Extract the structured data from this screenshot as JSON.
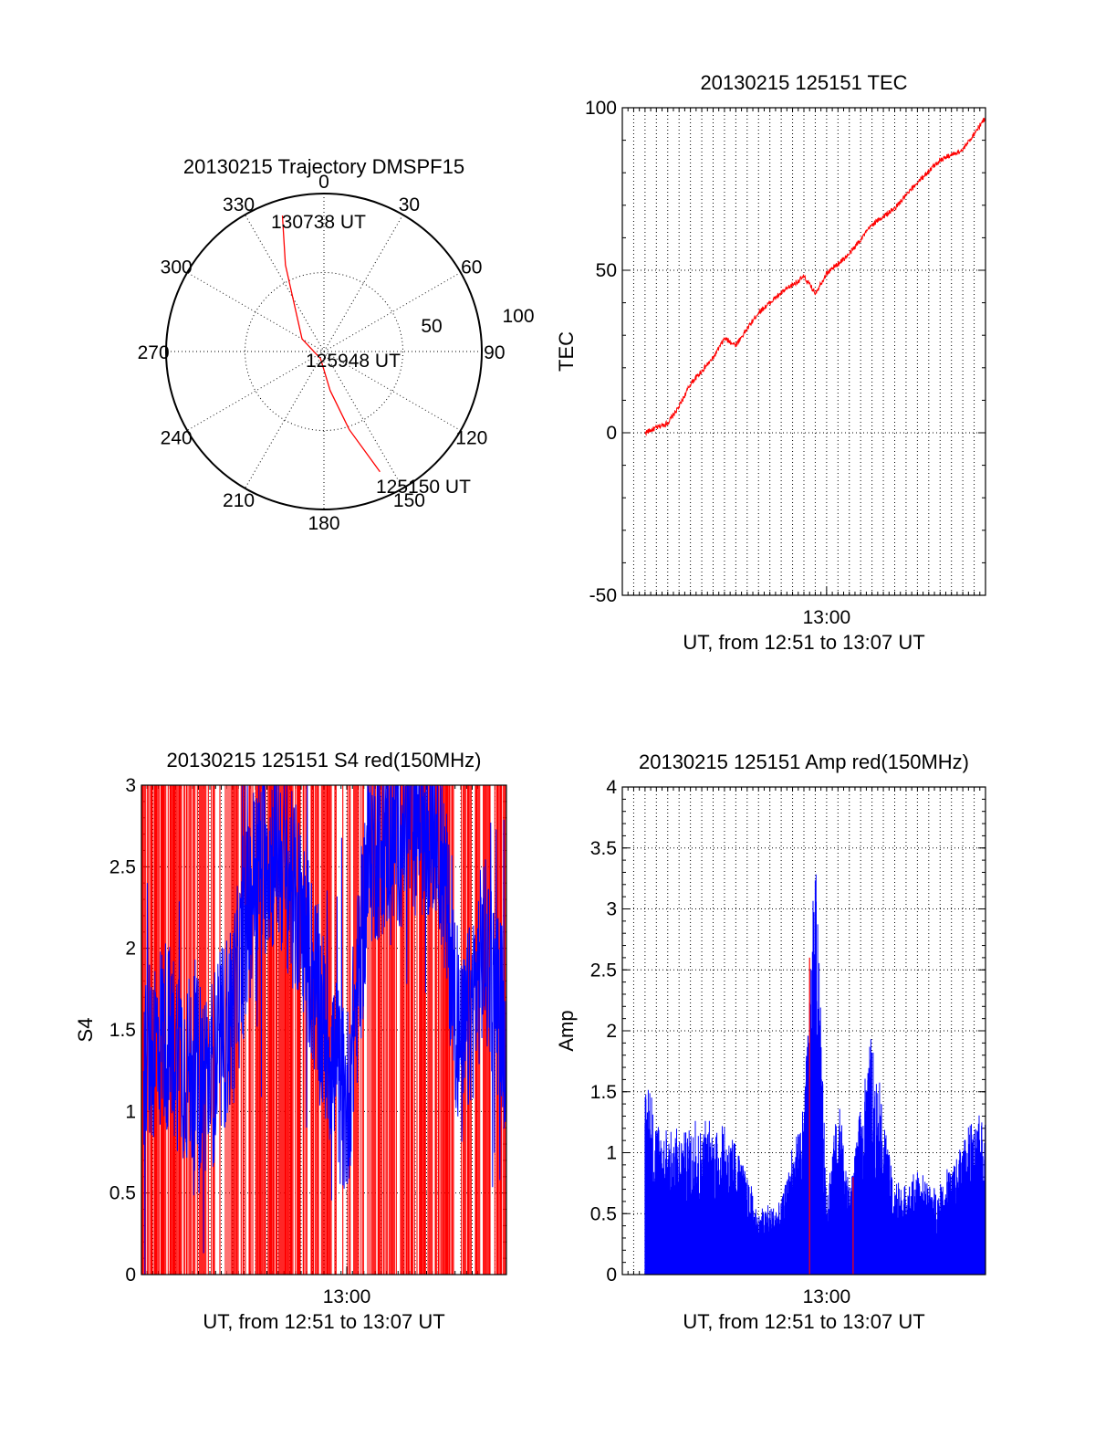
{
  "chart_data": [
    {
      "id": "trajectory",
      "type": "scatter",
      "subtype": "polar",
      "title": "20130215 Trajectory DMSPF15",
      "angle_labels": [
        "0",
        "30",
        "60",
        "90",
        "120",
        "150",
        "180",
        "210",
        "240",
        "270",
        "300",
        "330"
      ],
      "radial_labels": [
        "50",
        "100"
      ],
      "rlim": [
        0,
        100
      ],
      "grid": true,
      "series": [
        {
          "color": "#ff0000",
          "points": [
            {
              "az": 343,
              "r": 90
            },
            {
              "az": 336,
              "r": 60
            },
            {
              "az": 300,
              "r": 16
            },
            {
              "az": 205,
              "r": 5
            },
            {
              "az": 171,
              "r": 25
            },
            {
              "az": 162,
              "r": 52
            },
            {
              "az": 155,
              "r": 84
            }
          ]
        }
      ],
      "annotations": [
        {
          "text": "130738 UT",
          "az": 340,
          "r": 90
        },
        {
          "text": "125948 UT",
          "az": 90,
          "r": 10
        },
        {
          "text": "125150 UT",
          "az": 152,
          "r": 90
        }
      ]
    },
    {
      "id": "tec",
      "type": "line",
      "title": "20130215 125151 TEC",
      "xlabel": "UT, from 12:51 to 13:07 UT",
      "ylabel": "TEC",
      "xlim": [
        "12:51",
        "13:07"
      ],
      "ylim": [
        -50,
        100
      ],
      "yticks": [
        -50,
        0,
        50,
        100
      ],
      "xticks": [
        "13:00"
      ],
      "grid": true,
      "series": [
        {
          "color": "#ff0000",
          "x": [
            "12:52",
            "12:53",
            "12:53:30",
            "12:54",
            "12:55",
            "12:55:30",
            "12:56",
            "12:56:30",
            "12:57",
            "12:58",
            "12:59",
            "12:59:30",
            "13:00",
            "13:00:30",
            "13:01",
            "13:02",
            "13:03",
            "13:04",
            "13:05",
            "13:06",
            "13:07"
          ],
          "y": [
            0,
            3,
            8,
            15,
            23,
            29,
            27,
            32,
            37,
            43,
            48,
            43,
            49,
            52,
            55,
            64,
            69,
            77,
            84,
            87,
            97
          ]
        }
      ]
    },
    {
      "id": "s4",
      "type": "line",
      "title": "20130215 125151 S4 red(150MHz)",
      "xlabel": "UT, from 12:51 to 13:07 UT",
      "ylabel": "S4",
      "xlim": [
        "12:51",
        "13:07"
      ],
      "ylim": [
        0,
        3
      ],
      "yticks": [
        0,
        0.5,
        1,
        1.5,
        2,
        2.5,
        3
      ],
      "xticks": [
        "13:00"
      ],
      "grid": true,
      "series": [
        {
          "color": "#0000ff",
          "x": [
            "12:51",
            "12:52",
            "12:53",
            "12:54",
            "12:55",
            "12:56",
            "12:57",
            "12:58",
            "12:59",
            "13:00",
            "13:01",
            "13:02",
            "13:03",
            "13:04",
            "13:05",
            "13:06",
            "13:07"
          ],
          "y": [
            1.3,
            1.5,
            1.25,
            1.2,
            1.6,
            2.5,
            2.6,
            2.2,
            1.5,
            1.0,
            2.6,
            2.7,
            2.8,
            2.8,
            1.3,
            2.0,
            1.5
          ]
        },
        {
          "color": "#ff0000",
          "x": [
            "12:51",
            "12:53",
            "12:55",
            "12:57",
            "12:59",
            "13:01",
            "13:03",
            "13:05",
            "13:07"
          ],
          "y": [
            0,
            3,
            0,
            3,
            0,
            3,
            0,
            3,
            0
          ]
        }
      ]
    },
    {
      "id": "amp",
      "type": "line",
      "title": "20130215 125151 Amp red(150MHz)",
      "xlabel": "UT, from 12:51 to 13:07 UT",
      "ylabel": "Amp",
      "xlim": [
        "12:51",
        "13:07"
      ],
      "ylim": [
        0,
        4
      ],
      "yticks": [
        0,
        0.5,
        1,
        1.5,
        2,
        2.5,
        3,
        3.5,
        4
      ],
      "xticks": [
        "13:00"
      ],
      "grid": true,
      "series": [
        {
          "color": "#0000ff",
          "x": [
            "12:52",
            "12:53",
            "12:54",
            "12:55",
            "12:56",
            "12:57",
            "12:58",
            "12:59",
            "12:59:30",
            "13:00",
            "13:00:30",
            "13:01",
            "13:02",
            "13:03",
            "13:04",
            "13:05",
            "13:06",
            "13:07"
          ],
          "y": [
            1.5,
            1.1,
            1.2,
            1.2,
            1.1,
            0.5,
            0.6,
            1.4,
            3.3,
            0.7,
            1.4,
            0.7,
            1.9,
            0.7,
            0.8,
            0.7,
            1.1,
            1.3
          ]
        },
        {
          "color": "#ff0000",
          "x": [
            "12:59:15",
            "13:01:10"
          ],
          "y": [
            2.6,
            0.8
          ]
        }
      ]
    }
  ]
}
